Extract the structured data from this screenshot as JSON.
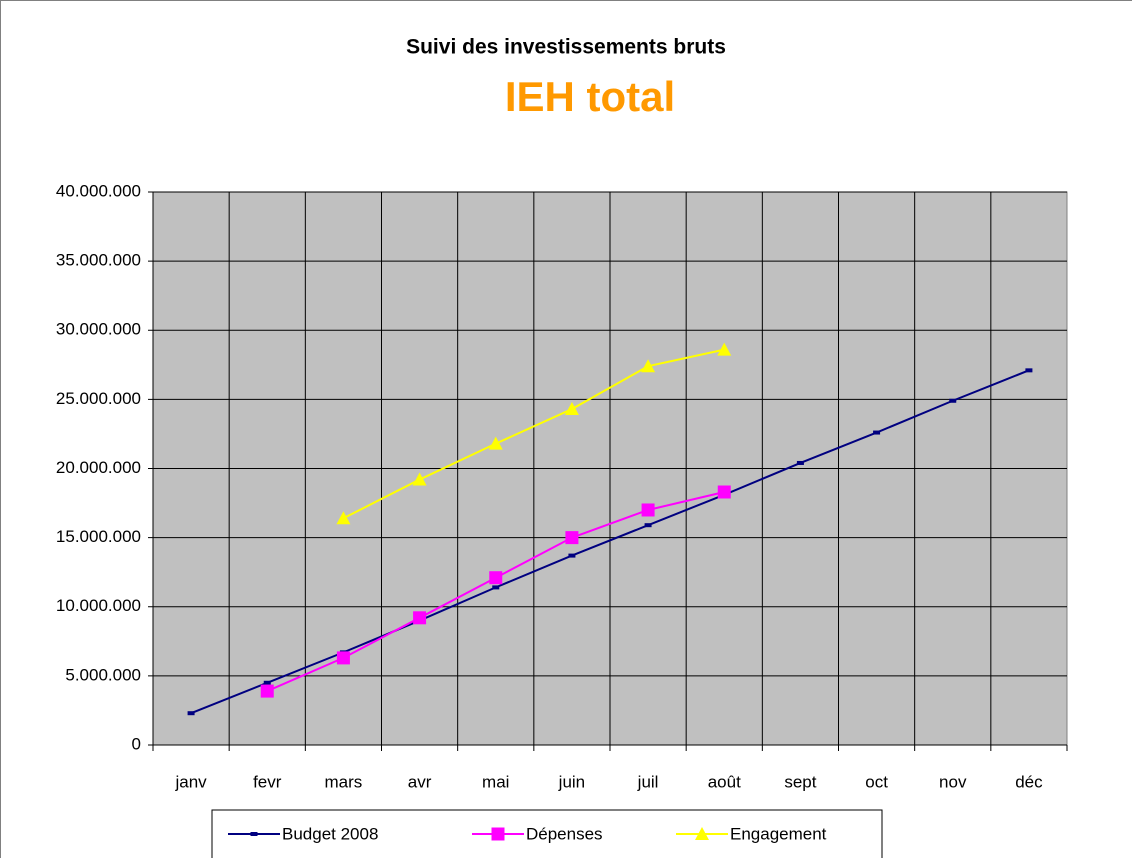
{
  "chart_data": {
    "type": "line",
    "title": "Suivi des investissements bruts",
    "subtitle": "IEH total",
    "categories": [
      "janv",
      "fevr",
      "mars",
      "avr",
      "mai",
      "juin",
      "juil",
      "août",
      "sept",
      "oct",
      "nov",
      "déc"
    ],
    "series": [
      {
        "name": "Budget 2008",
        "color": "#000080",
        "marker": "dash",
        "values": [
          2300000,
          4500000,
          6700000,
          9000000,
          11400000,
          13700000,
          15900000,
          18100000,
          20400000,
          22600000,
          24900000,
          27100000
        ]
      },
      {
        "name": "Dépenses",
        "color": "#ff00ff",
        "marker": "square",
        "values": [
          null,
          3900000,
          6300000,
          9200000,
          12100000,
          15000000,
          17000000,
          18300000,
          null,
          null,
          null,
          null
        ]
      },
      {
        "name": "Engagement",
        "color": "#ffff00",
        "marker": "triangle",
        "values": [
          null,
          null,
          16400000,
          19200000,
          21800000,
          24300000,
          27400000,
          28600000,
          null,
          null,
          null,
          null
        ]
      }
    ],
    "ylim": [
      0,
      40000000
    ],
    "yticks": [
      0,
      {
        "value": 5000000,
        "label": "5.000.000"
      },
      {
        "value": 10000000,
        "label": "10.000.000"
      },
      {
        "value": 15000000,
        "label": "15.000.000"
      },
      {
        "value": 20000000,
        "label": "20.000.000"
      },
      {
        "value": 25000000,
        "label": "25.000.000"
      },
      {
        "value": 30000000,
        "label": "30.000.000"
      },
      {
        "value": 35000000,
        "label": "35.000.000"
      },
      {
        "value": 40000000,
        "label": "40.000.000"
      }
    ],
    "grid": true,
    "legend": "bottom"
  }
}
